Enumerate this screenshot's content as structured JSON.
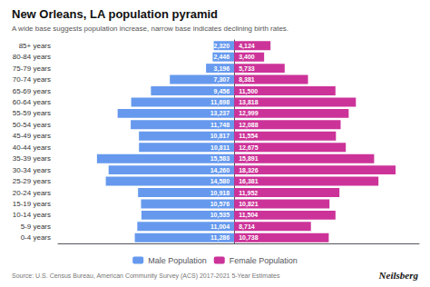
{
  "chart_data": {
    "type": "bar",
    "orientation": "horizontal",
    "title": "New Orleans, LA population pyramid",
    "subtitle": "A wide base suggests population increase, narrow base indicates declining birth rates.",
    "annotations": [
      "Source: U.S. Census Bureau, American Community Survey (ACS) 2017-2021 5-Year Estimates",
      "Neilsberg"
    ],
    "categories": [
      "0-4 years",
      "5-9 years",
      "10-14 years",
      "15-19 years",
      "20-24 years",
      "25-29 years",
      "30-34 years",
      "35-39 years",
      "40-44 years",
      "45-49 years",
      "50-54 years",
      "55-59 years",
      "60-64 years",
      "65-69 years",
      "70-74 years",
      "75-79 years",
      "80-84 years",
      "85+ years"
    ],
    "series": [
      {
        "name": "Male Population",
        "color": "#6699ee",
        "values": [
          11286,
          11004,
          10535,
          10576,
          10918,
          14580,
          14260,
          15583,
          10811,
          10817,
          11748,
          13237,
          11698,
          9456,
          7307,
          3196,
          2446,
          2320
        ],
        "value_labels": [
          "11,286",
          "11,004",
          "10,535",
          "10,576",
          "10,918",
          "14,580",
          "14,260",
          "15,583",
          "10,811",
          "10,817",
          "11,748",
          "13,237",
          "11,698",
          "9,456",
          "7,307",
          "3,196",
          "2,446",
          "2,320"
        ]
      },
      {
        "name": "Female Population",
        "color": "#cc3399",
        "values": [
          10738,
          8714,
          11504,
          10821,
          11952,
          16381,
          18326,
          15891,
          12675,
          11554,
          12088,
          12999,
          13818,
          11500,
          8381,
          5733,
          3400,
          4124
        ],
        "value_labels": [
          "10,738",
          "8,714",
          "11,504",
          "10,821",
          "11,952",
          "16,381",
          "18,326",
          "15,891",
          "12,675",
          "11,554",
          "12,088",
          "12,999",
          "13,818",
          "11,500",
          "8,381",
          "5,733",
          "3,400",
          "4,124"
        ]
      }
    ],
    "xlim": [
      -20000,
      21000
    ],
    "xticks": [],
    "tick_labels": "y",
    "data_labels": true,
    "grid": false,
    "legend": "bottom"
  }
}
